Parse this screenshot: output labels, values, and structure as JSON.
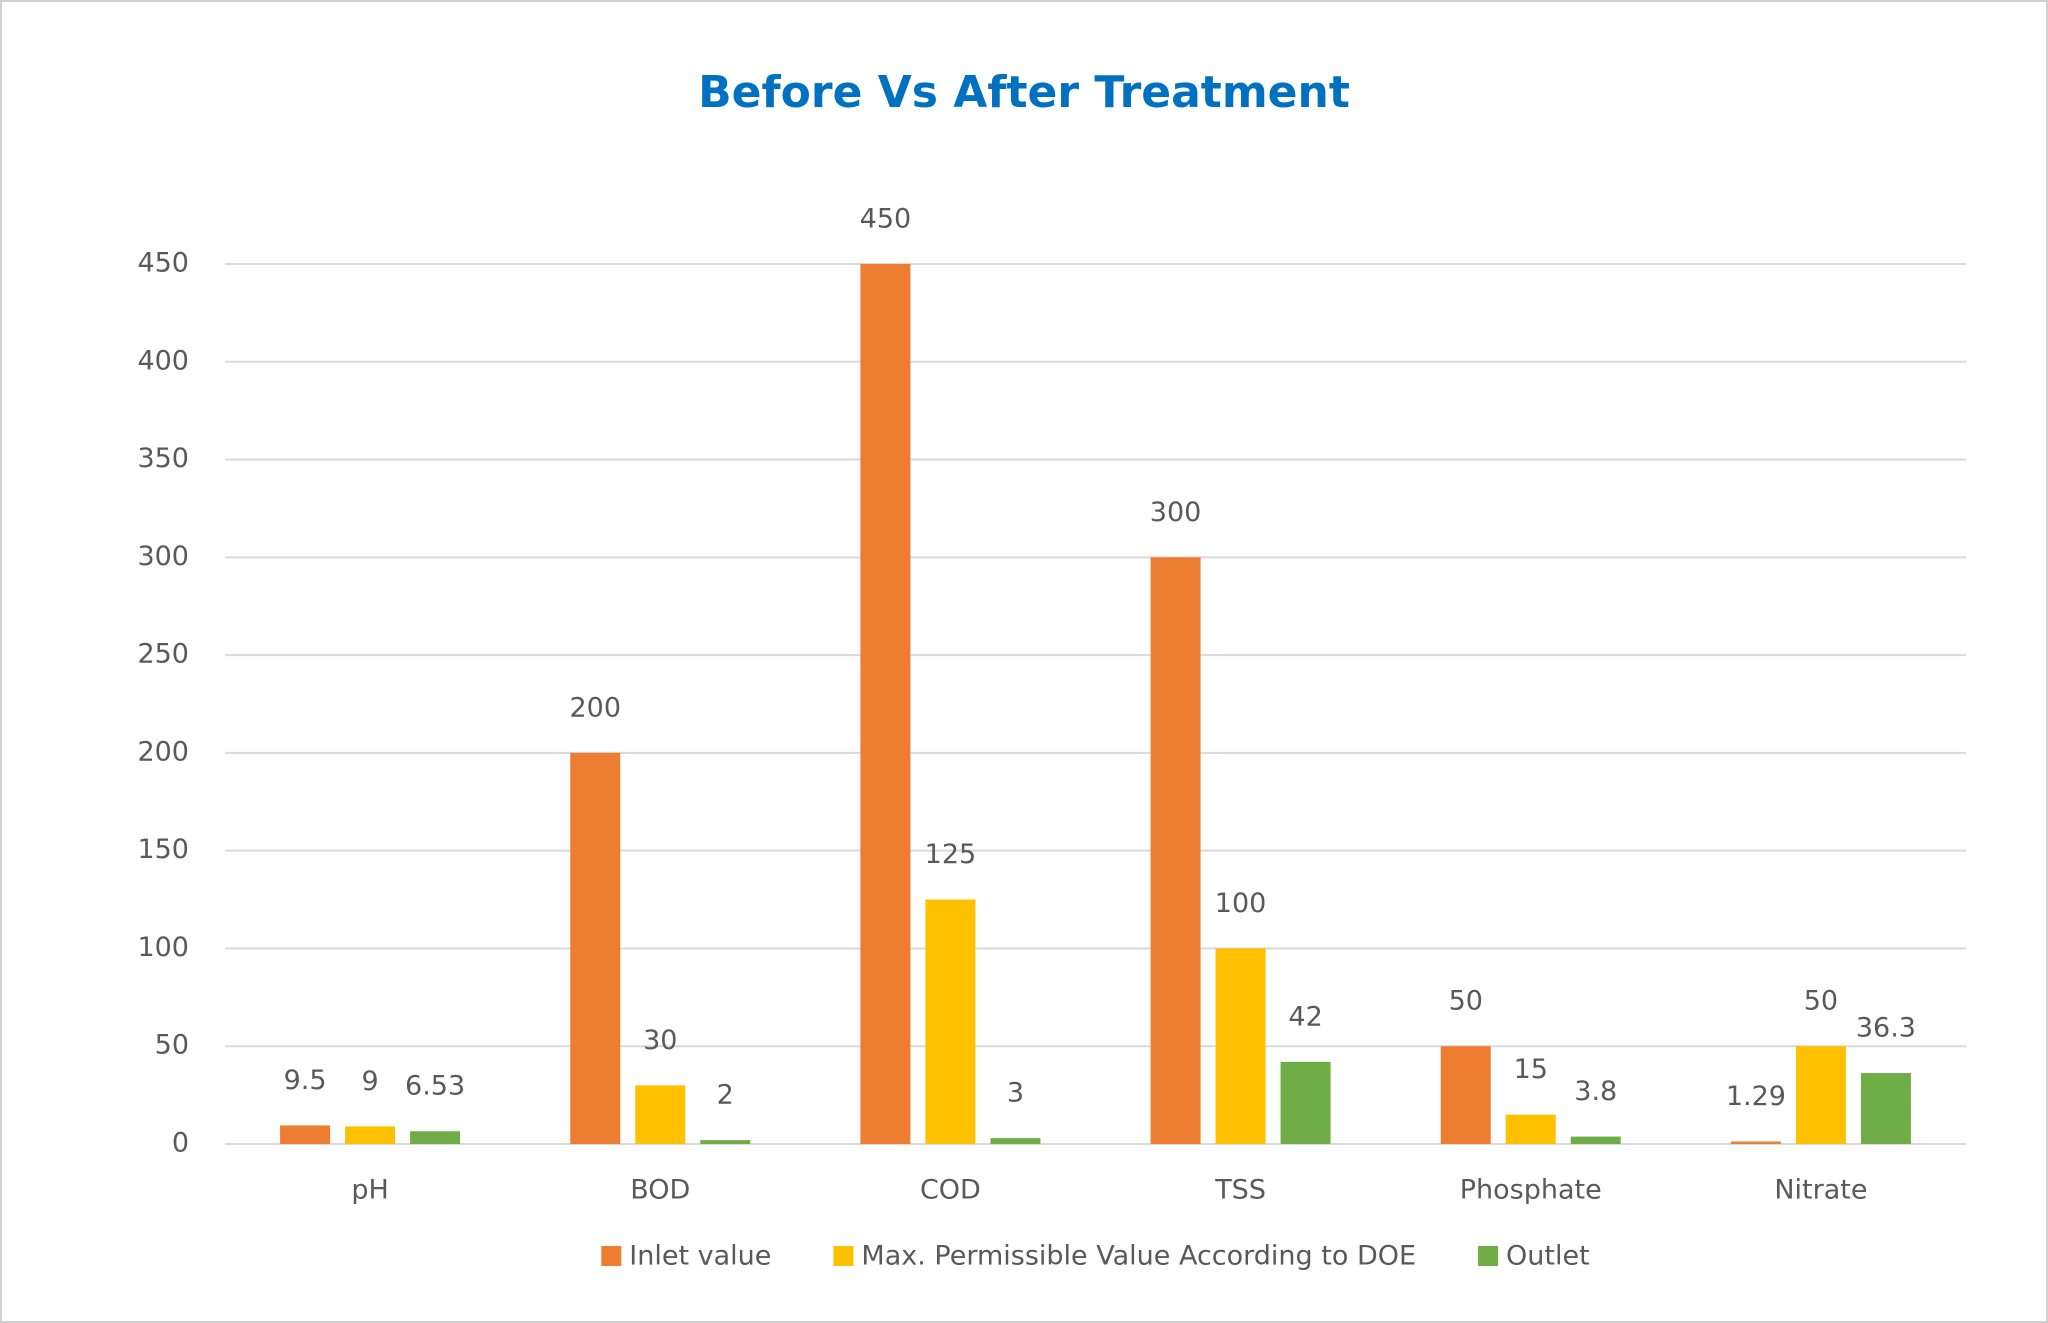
{
  "chart_data": {
    "type": "bar",
    "title": "Before Vs After Treatment",
    "categories": [
      "pH",
      "BOD",
      "COD",
      "TSS",
      "Phosphate",
      "Nitrate"
    ],
    "series": [
      {
        "name": "Inlet value",
        "color": "#ed7d31",
        "values": [
          9.5,
          200,
          450,
          300,
          50,
          1.29
        ]
      },
      {
        "name": "Max. Permissible Value According to DOE",
        "color": "#ffc000",
        "values": [
          9,
          30,
          125,
          100,
          15,
          50
        ]
      },
      {
        "name": "Outlet",
        "color": "#70ad47",
        "values": [
          6.53,
          2,
          3,
          42,
          3.8,
          36.3
        ]
      }
    ],
    "ylim": [
      0,
      450
    ],
    "yticks": [
      0,
      50,
      100,
      150,
      200,
      250,
      300,
      350,
      400,
      450
    ],
    "grid": true,
    "legend": "bottom"
  }
}
